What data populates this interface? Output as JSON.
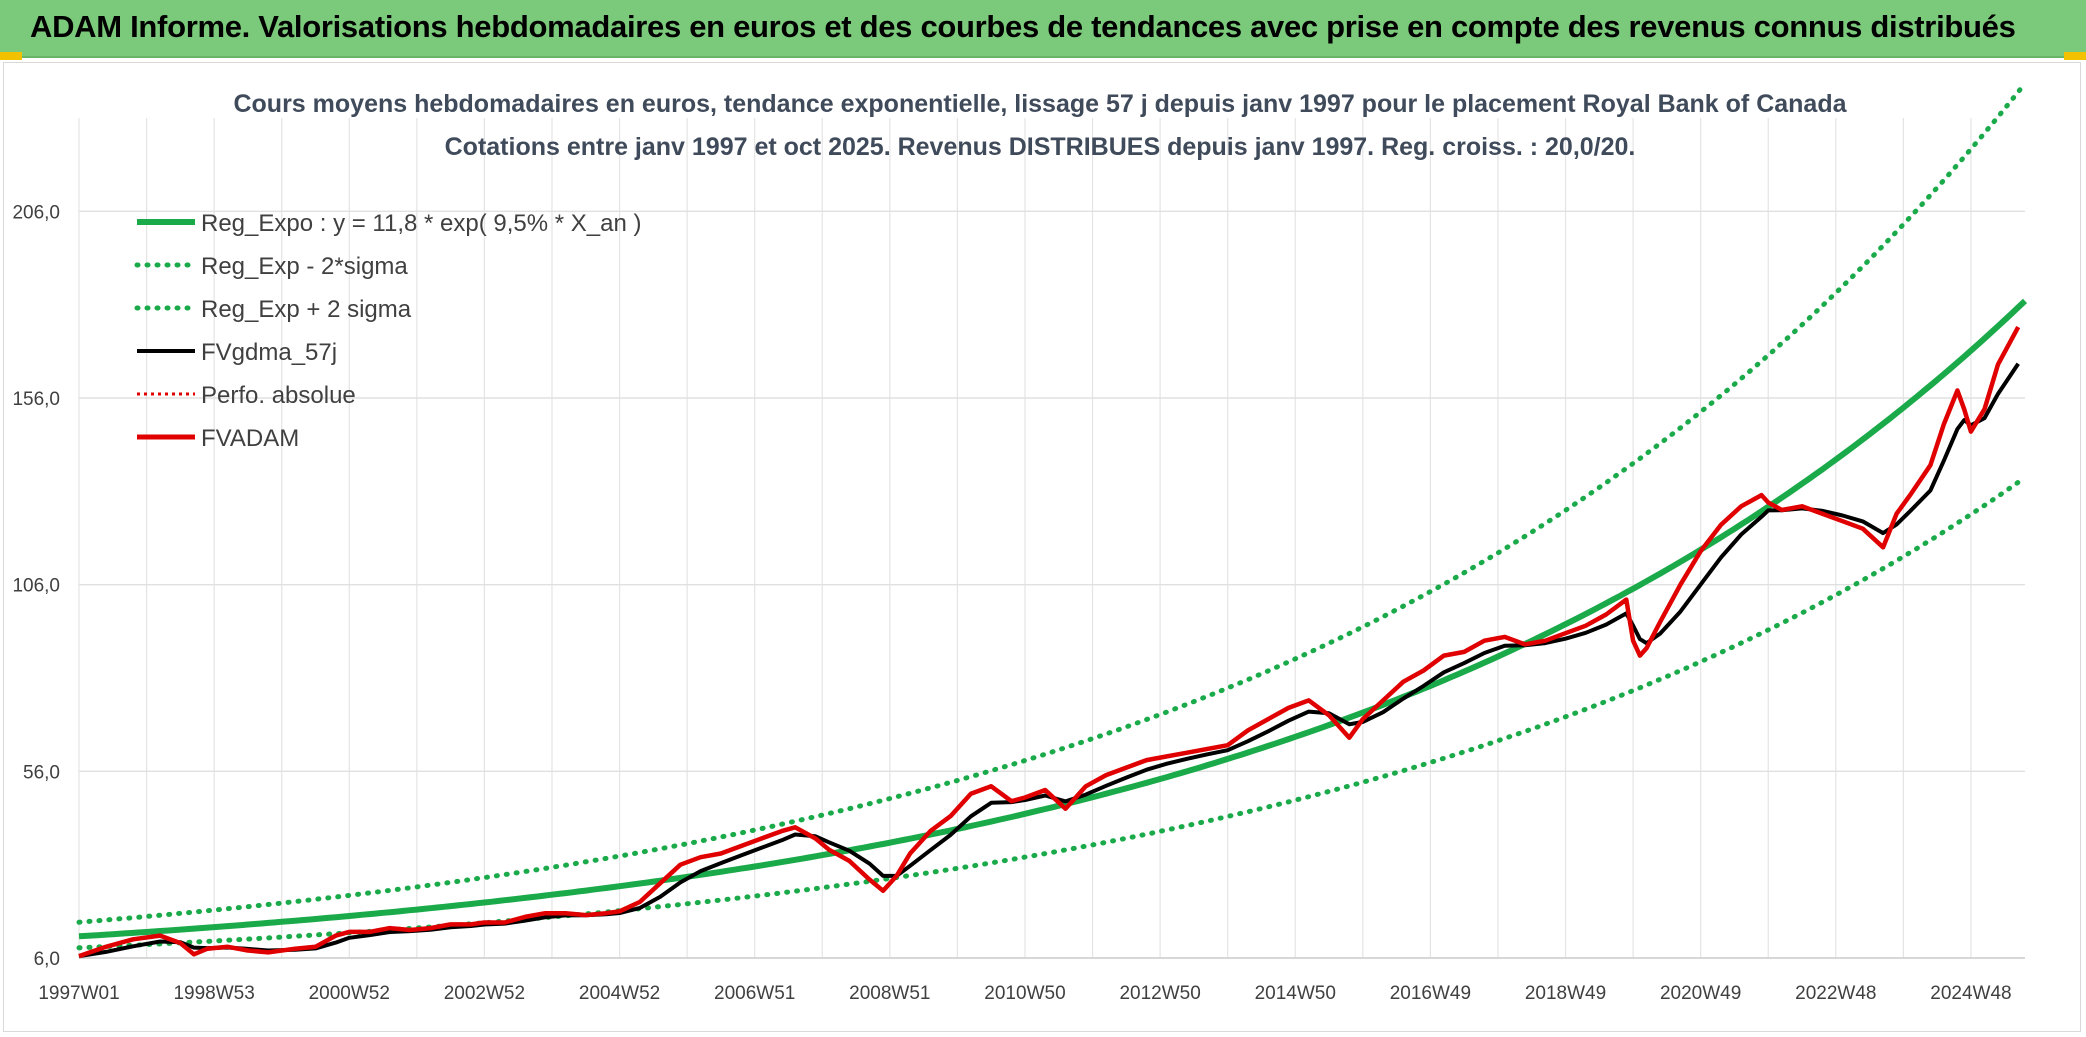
{
  "banner": {
    "title": "ADAM Informe. Valorisations hebdomadaires en euros et des courbes de tendances avec prise en compte des revenus connus distribués"
  },
  "chart_data": {
    "type": "line",
    "title": "Cours moyens hebdomadaires en euros, tendance exponentielle, lissage 57 j depuis janv 1997 pour le placement Royal Bank of Canada",
    "subtitle": "Cotations entre janv 1997 et oct 2025. Revenus DISTRIBUES depuis janv 1997. Reg. croiss. : 20,0/20.",
    "xlabel": "",
    "ylabel": "",
    "xlim": [
      1997.0,
      2025.8
    ],
    "ylim": [
      6,
      231
    ],
    "grid": true,
    "legend_position": "top-left",
    "y_ticks": [
      "6,0",
      "56,0",
      "106,0",
      "156,0",
      "206,0"
    ],
    "y_tick_values": [
      6,
      56,
      106,
      156,
      206
    ],
    "x_ticks": [
      "1997W01",
      "1998W53",
      "2000W52",
      "2002W52",
      "2004W52",
      "2006W51",
      "2008W51",
      "2010W50",
      "2012W50",
      "2014W50",
      "2016W49",
      "2018W49",
      "2020W49",
      "2022W48",
      "2024W48"
    ],
    "x_tick_values": [
      1997.0,
      1999.0,
      2001.0,
      2003.0,
      2005.0,
      2007.0,
      2009.0,
      2011.0,
      2013.0,
      2015.0,
      2017.0,
      2019.0,
      2021.0,
      2023.0,
      2025.0
    ],
    "regression": {
      "a": 11.8,
      "rate": 0.095,
      "sigma_low_factor": 0.74,
      "sigma_high_factor": 1.32
    },
    "series": [
      {
        "name": "Reg_Expo : y = 11,8 * exp( 9,5% *  X_an )",
        "color": "#1aaa4a",
        "style": "solid-thick"
      },
      {
        "name": "Reg_Exp - 2*sigma",
        "color": "#1aaa4a",
        "style": "dotted"
      },
      {
        "name": "Reg_Exp + 2 sigma",
        "color": "#1aaa4a",
        "style": "dotted"
      },
      {
        "name": "FVgdma_57j",
        "color": "#000000",
        "style": "solid"
      },
      {
        "name": "Perfo. absolue",
        "color": "#e00000",
        "style": "dotted"
      },
      {
        "name": "FVADAM",
        "color": "#e00000",
        "style": "solid-thick",
        "x": [
          1997.0,
          1997.4,
          1997.8,
          1998.2,
          1998.5,
          1998.7,
          1998.9,
          1999.2,
          1999.5,
          1999.8,
          2000.2,
          2000.5,
          2000.8,
          2001.0,
          2001.3,
          2001.6,
          2001.9,
          2002.2,
          2002.5,
          2002.8,
          2003.0,
          2003.3,
          2003.6,
          2003.9,
          2004.2,
          2004.5,
          2004.8,
          2005.0,
          2005.3,
          2005.6,
          2005.9,
          2006.2,
          2006.5,
          2006.8,
          2007.1,
          2007.4,
          2007.6,
          2007.9,
          2008.1,
          2008.4,
          2008.7,
          2008.9,
          2009.1,
          2009.3,
          2009.6,
          2009.9,
          2010.2,
          2010.5,
          2010.8,
          2011.0,
          2011.3,
          2011.6,
          2011.9,
          2012.2,
          2012.5,
          2012.8,
          2013.1,
          2013.4,
          2013.7,
          2014.0,
          2014.3,
          2014.6,
          2014.9,
          2015.2,
          2015.5,
          2015.8,
          2016.0,
          2016.3,
          2016.6,
          2016.9,
          2017.2,
          2017.5,
          2017.8,
          2018.1,
          2018.4,
          2018.7,
          2019.0,
          2019.3,
          2019.6,
          2019.9,
          2020.0,
          2020.1,
          2020.2,
          2020.4,
          2020.7,
          2021.0,
          2021.3,
          2021.6,
          2021.9,
          2022.0,
          2022.2,
          2022.5,
          2022.8,
          2023.1,
          2023.4,
          2023.7,
          2023.9,
          2024.1,
          2024.4,
          2024.6,
          2024.8,
          2024.9,
          2025.0,
          2025.2,
          2025.4,
          2025.7
        ],
        "values": [
          6.5,
          9,
          11,
          12,
          10,
          7,
          8.5,
          9,
          8,
          7.5,
          8.5,
          9,
          12,
          13,
          13,
          14,
          13.5,
          14,
          15,
          15,
          15.5,
          15.5,
          17,
          18,
          18,
          17.5,
          18,
          18.5,
          21,
          26,
          31,
          33,
          34,
          36,
          38,
          40,
          41,
          38,
          35,
          32,
          27,
          24,
          28,
          34,
          40,
          44,
          50,
          52,
          48,
          49,
          51,
          46,
          52,
          55,
          57,
          59,
          60,
          61,
          62,
          63,
          67,
          70,
          73,
          75,
          71,
          65,
          70,
          75,
          80,
          83,
          87,
          88,
          91,
          92,
          90,
          91,
          93,
          95,
          98,
          102,
          91,
          87,
          89,
          96,
          106,
          115,
          122,
          127,
          130,
          128,
          126,
          127,
          125,
          123,
          121,
          116,
          125,
          130,
          138,
          149,
          158,
          153,
          147,
          153,
          165,
          175
        ]
      }
    ]
  }
}
